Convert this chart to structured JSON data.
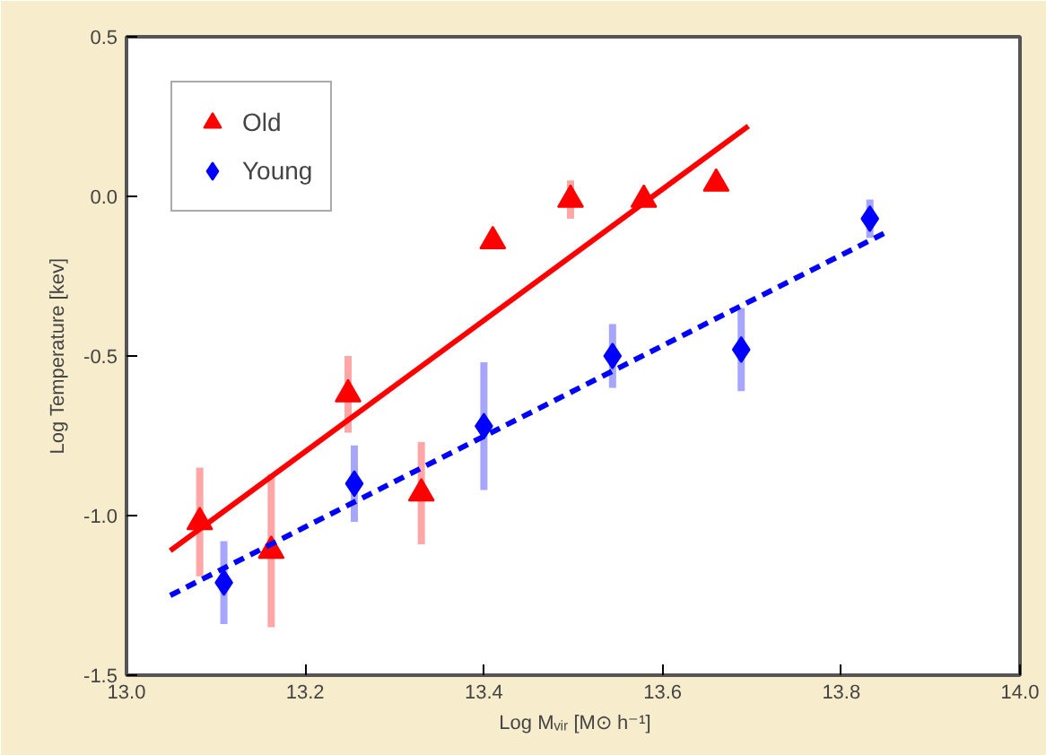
{
  "chart_data": {
    "type": "scatter",
    "xlabel": "Log Mᵥᵢᵣ [M⊙ h⁻¹]",
    "ylabel": "Log Temperature [kev]",
    "xlim": [
      13.0,
      14.0
    ],
    "ylim": [
      -1.5,
      0.5
    ],
    "xticks": [
      {
        "value": 13.0,
        "label": "13.0"
      },
      {
        "value": 13.2,
        "label": "13.2"
      },
      {
        "value": 13.4,
        "label": "13.4"
      },
      {
        "value": 13.6,
        "label": "13.6"
      },
      {
        "value": 13.8,
        "label": "13.8"
      },
      {
        "value": 14.0,
        "label": "14.0"
      }
    ],
    "yticks": [
      {
        "value": -1.5,
        "label": "-1.5"
      },
      {
        "value": -1.0,
        "label": "-1.0"
      },
      {
        "value": -0.5,
        "label": "-0.5"
      },
      {
        "value": 0.0,
        "label": "0.0"
      },
      {
        "value": 0.5,
        "label": "0.5"
      }
    ],
    "grid": false,
    "legend": "top left",
    "series": [
      {
        "name": "Old",
        "color": "#ff0000",
        "marker": "triangle",
        "x": [
          13.082,
          13.162,
          13.248,
          13.33,
          13.41,
          13.497,
          13.579,
          13.66
        ],
        "values": [
          -1.02,
          -1.11,
          -0.62,
          -0.93,
          -0.14,
          -0.01,
          -0.01,
          0.04
        ],
        "errors": [
          0.17,
          0.24,
          0.12,
          0.16,
          null,
          0.06,
          null,
          null
        ]
      },
      {
        "name": "Young",
        "color": "#0000ff",
        "marker": "diamond",
        "x": [
          13.109,
          13.255,
          13.4,
          13.544,
          13.688,
          13.832
        ],
        "values": [
          -1.21,
          -0.9,
          -0.72,
          -0.5,
          -0.48,
          -0.07
        ],
        "errors": [
          0.13,
          0.12,
          0.2,
          0.1,
          0.13,
          0.06
        ]
      },
      {
        "type": "line",
        "color": "#ff0000",
        "line_style": "solid",
        "x": [
          13.049,
          13.696
        ],
        "values": [
          -1.11,
          0.22
        ]
      },
      {
        "type": "line",
        "color": "#0000ff",
        "line_style": "dashed",
        "x": [
          13.049,
          13.852
        ],
        "values": [
          -1.25,
          -0.11
        ]
      }
    ]
  }
}
